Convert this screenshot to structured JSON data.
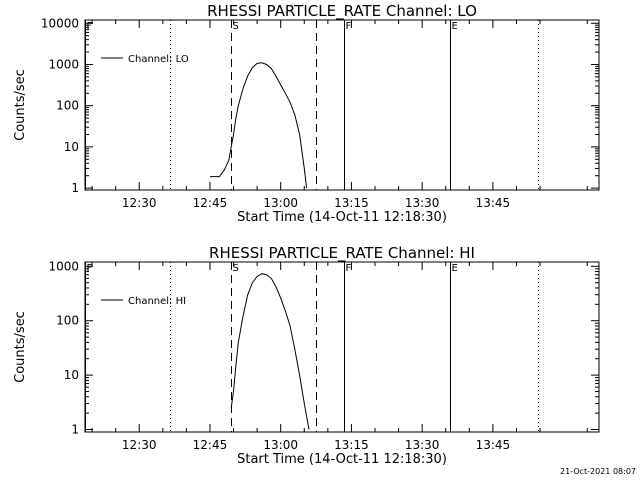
{
  "footer": {
    "timestamp": "21-Oct-2021 08:07"
  },
  "chart_data": [
    {
      "type": "line",
      "title": "RHESSI PARTICLE_RATE Channel: LO",
      "xlabel": "Start Time (14-Oct-11 12:18:30)",
      "ylabel": "Counts/sec",
      "yscale": "log",
      "xlim": [
        "12:18:30",
        "14:07:30"
      ],
      "ylim": [
        0.9,
        12000
      ],
      "x_ticks": [
        "12:30",
        "12:45",
        "13:00",
        "13:15",
        "13:30",
        "13:45"
      ],
      "y_ticks": [
        "1",
        "10",
        "100",
        "1000",
        "10000"
      ],
      "legend": {
        "position": "top-left",
        "entries": [
          "Channel: LO"
        ]
      },
      "markers": [
        {
          "label": "F",
          "time": "12:18:30",
          "style": "solid"
        },
        {
          "label": "",
          "time": "12:36:30",
          "style": "dotted"
        },
        {
          "label": "S",
          "time": "12:49:30",
          "style": "dashed"
        },
        {
          "label": "",
          "time": "13:07:30",
          "style": "dashed"
        },
        {
          "label": "F",
          "time": "13:13:30",
          "style": "solid"
        },
        {
          "label": "E",
          "time": "13:36:00",
          "style": "solid"
        },
        {
          "label": "",
          "time": "13:54:30",
          "style": "dotted"
        }
      ],
      "series": [
        {
          "name": "Channel: LO",
          "x": [
            "12:45:00",
            "12:47:00",
            "12:48:00",
            "12:49:00",
            "12:49:30",
            "12:50:00",
            "12:50:30",
            "12:51:00",
            "12:52:00",
            "12:53:00",
            "12:54:00",
            "12:55:00",
            "12:56:00",
            "12:57:00",
            "12:58:00",
            "12:59:00",
            "13:00:00",
            "13:01:00",
            "13:02:00",
            "13:03:00",
            "13:04:00",
            "13:05:00",
            "13:05:30"
          ],
          "y": [
            1.9,
            1.9,
            2.7,
            4.7,
            10,
            20,
            50,
            100,
            260,
            530,
            840,
            1060,
            1100,
            1000,
            800,
            520,
            320,
            200,
            120,
            60,
            20,
            3,
            1
          ]
        }
      ]
    },
    {
      "type": "line",
      "title": "RHESSI PARTICLE_RATE Channel: HI",
      "xlabel": "Start Time (14-Oct-11 12:18:30)",
      "ylabel": "Counts/sec",
      "yscale": "log",
      "xlim": [
        "12:18:30",
        "14:07:30"
      ],
      "ylim": [
        0.9,
        1200
      ],
      "x_ticks": [
        "12:30",
        "12:45",
        "13:00",
        "13:15",
        "13:30",
        "13:45"
      ],
      "y_ticks": [
        "1",
        "10",
        "100",
        "1000"
      ],
      "legend": {
        "position": "top-left",
        "entries": [
          "Channel: HI"
        ]
      },
      "markers": [
        {
          "label": "F",
          "time": "12:18:30",
          "style": "solid"
        },
        {
          "label": "",
          "time": "12:36:30",
          "style": "dotted"
        },
        {
          "label": "S",
          "time": "12:49:30",
          "style": "dashed"
        },
        {
          "label": "",
          "time": "13:07:30",
          "style": "dashed"
        },
        {
          "label": "F",
          "time": "13:13:30",
          "style": "solid"
        },
        {
          "label": "E",
          "time": "13:36:00",
          "style": "solid"
        },
        {
          "label": "",
          "time": "13:54:30",
          "style": "dotted"
        }
      ],
      "series": [
        {
          "name": "Channel: HI",
          "x": [
            "12:49:30",
            "12:50:00",
            "12:50:30",
            "12:51:00",
            "12:52:00",
            "12:53:00",
            "12:54:00",
            "12:55:00",
            "12:56:00",
            "12:57:00",
            "12:58:00",
            "12:59:00",
            "13:00:00",
            "13:01:00",
            "13:02:00",
            "13:03:00",
            "13:04:00",
            "13:05:00",
            "13:06:00"
          ],
          "y": [
            2.5,
            5,
            15,
            40,
            120,
            300,
            500,
            650,
            730,
            700,
            600,
            420,
            260,
            150,
            80,
            30,
            10,
            3,
            1
          ]
        }
      ]
    }
  ]
}
